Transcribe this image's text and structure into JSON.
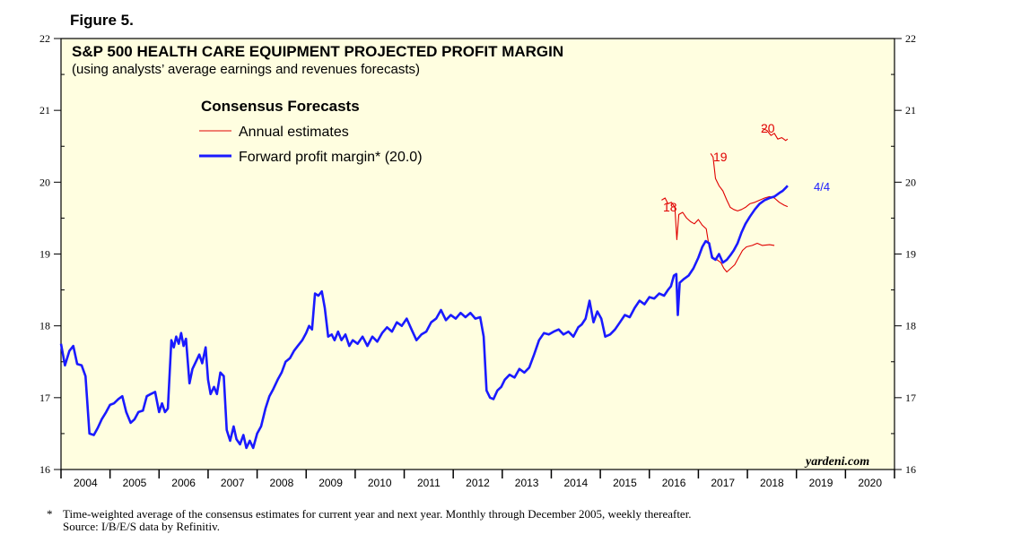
{
  "figure_label": "Figure 5.",
  "brand": "yardeni.com",
  "footnote": {
    "marker": "*",
    "line1": "Time-weighted average of the consensus estimates for current year and next year. Monthly through December 2005, weekly thereafter.",
    "line2": "Source: I/B/E/S data by Refinitiv."
  },
  "colors": {
    "background": "#fffee0",
    "forward": "#1a1aff",
    "annual": "#e00000"
  },
  "chart_data": {
    "type": "line",
    "title": "S&P 500 HEALTH CARE EQUIPMENT PROJECTED PROFIT MARGIN",
    "subtitle": "(using analysts’ average earnings and revenues forecasts)",
    "legend": {
      "title": "Consensus Forecasts",
      "entries": [
        "Annual estimates",
        "Forward profit margin* (20.0)"
      ],
      "placement": "top-left"
    },
    "ylim": [
      16,
      22
    ],
    "yticks": [
      "16",
      "17",
      "18",
      "19",
      "20",
      "21",
      "22"
    ],
    "xlim": [
      2004,
      2021
    ],
    "xticks": [
      "2004",
      "2005",
      "2006",
      "2007",
      "2008",
      "2009",
      "2010",
      "2011",
      "2012",
      "2013",
      "2014",
      "2015",
      "2016",
      "2017",
      "2018",
      "2019",
      "2020"
    ],
    "annotations": {
      "y18": "18",
      "y19": "19",
      "y20": "20",
      "last_date": "4/4"
    },
    "series": [
      {
        "name": "Forward profit margin",
        "color": "#1a1aff",
        "points": [
          [
            2004.0,
            17.75
          ],
          [
            2004.08,
            17.45
          ],
          [
            2004.17,
            17.65
          ],
          [
            2004.25,
            17.72
          ],
          [
            2004.33,
            17.47
          ],
          [
            2004.42,
            17.45
          ],
          [
            2004.5,
            17.3
          ],
          [
            2004.58,
            16.5
          ],
          [
            2004.67,
            16.48
          ],
          [
            2004.75,
            16.58
          ],
          [
            2004.83,
            16.7
          ],
          [
            2004.92,
            16.8
          ],
          [
            2005.0,
            16.9
          ],
          [
            2005.08,
            16.92
          ],
          [
            2005.17,
            16.98
          ],
          [
            2005.25,
            17.02
          ],
          [
            2005.33,
            16.8
          ],
          [
            2005.42,
            16.65
          ],
          [
            2005.5,
            16.7
          ],
          [
            2005.58,
            16.8
          ],
          [
            2005.67,
            16.82
          ],
          [
            2005.75,
            17.02
          ],
          [
            2005.83,
            17.05
          ],
          [
            2005.92,
            17.08
          ],
          [
            2006.0,
            16.8
          ],
          [
            2006.06,
            16.92
          ],
          [
            2006.12,
            16.8
          ],
          [
            2006.18,
            16.85
          ],
          [
            2006.25,
            17.8
          ],
          [
            2006.3,
            17.7
          ],
          [
            2006.35,
            17.85
          ],
          [
            2006.4,
            17.75
          ],
          [
            2006.45,
            17.9
          ],
          [
            2006.5,
            17.72
          ],
          [
            2006.55,
            17.82
          ],
          [
            2006.62,
            17.2
          ],
          [
            2006.68,
            17.4
          ],
          [
            2006.75,
            17.5
          ],
          [
            2006.82,
            17.6
          ],
          [
            2006.88,
            17.48
          ],
          [
            2006.95,
            17.7
          ],
          [
            2007.0,
            17.25
          ],
          [
            2007.05,
            17.05
          ],
          [
            2007.12,
            17.15
          ],
          [
            2007.18,
            17.05
          ],
          [
            2007.25,
            17.35
          ],
          [
            2007.32,
            17.3
          ],
          [
            2007.38,
            16.55
          ],
          [
            2007.45,
            16.4
          ],
          [
            2007.52,
            16.6
          ],
          [
            2007.58,
            16.42
          ],
          [
            2007.65,
            16.35
          ],
          [
            2007.72,
            16.48
          ],
          [
            2007.78,
            16.3
          ],
          [
            2007.85,
            16.4
          ],
          [
            2007.92,
            16.3
          ],
          [
            2008.0,
            16.5
          ],
          [
            2008.08,
            16.6
          ],
          [
            2008.17,
            16.85
          ],
          [
            2008.25,
            17.02
          ],
          [
            2008.33,
            17.12
          ],
          [
            2008.42,
            17.25
          ],
          [
            2008.5,
            17.35
          ],
          [
            2008.58,
            17.5
          ],
          [
            2008.67,
            17.55
          ],
          [
            2008.75,
            17.65
          ],
          [
            2008.83,
            17.72
          ],
          [
            2008.92,
            17.8
          ],
          [
            2009.0,
            17.9
          ],
          [
            2009.06,
            18.0
          ],
          [
            2009.12,
            17.95
          ],
          [
            2009.18,
            18.45
          ],
          [
            2009.25,
            18.42
          ],
          [
            2009.32,
            18.48
          ],
          [
            2009.38,
            18.25
          ],
          [
            2009.45,
            17.85
          ],
          [
            2009.52,
            17.88
          ],
          [
            2009.58,
            17.8
          ],
          [
            2009.65,
            17.92
          ],
          [
            2009.72,
            17.8
          ],
          [
            2009.8,
            17.88
          ],
          [
            2009.88,
            17.72
          ],
          [
            2009.95,
            17.8
          ],
          [
            2010.05,
            17.75
          ],
          [
            2010.15,
            17.85
          ],
          [
            2010.25,
            17.72
          ],
          [
            2010.35,
            17.85
          ],
          [
            2010.45,
            17.78
          ],
          [
            2010.55,
            17.9
          ],
          [
            2010.65,
            17.98
          ],
          [
            2010.75,
            17.92
          ],
          [
            2010.85,
            18.05
          ],
          [
            2010.95,
            18.0
          ],
          [
            2011.05,
            18.1
          ],
          [
            2011.15,
            17.95
          ],
          [
            2011.25,
            17.8
          ],
          [
            2011.35,
            17.88
          ],
          [
            2011.45,
            17.92
          ],
          [
            2011.55,
            18.05
          ],
          [
            2011.65,
            18.1
          ],
          [
            2011.75,
            18.22
          ],
          [
            2011.85,
            18.08
          ],
          [
            2011.95,
            18.15
          ],
          [
            2012.05,
            18.1
          ],
          [
            2012.15,
            18.18
          ],
          [
            2012.25,
            18.12
          ],
          [
            2012.35,
            18.18
          ],
          [
            2012.45,
            18.1
          ],
          [
            2012.55,
            18.12
          ],
          [
            2012.62,
            17.85
          ],
          [
            2012.68,
            17.1
          ],
          [
            2012.75,
            17.0
          ],
          [
            2012.82,
            16.98
          ],
          [
            2012.9,
            17.1
          ],
          [
            2012.98,
            17.15
          ],
          [
            2013.05,
            17.25
          ],
          [
            2013.15,
            17.32
          ],
          [
            2013.25,
            17.28
          ],
          [
            2013.35,
            17.4
          ],
          [
            2013.45,
            17.35
          ],
          [
            2013.55,
            17.42
          ],
          [
            2013.65,
            17.6
          ],
          [
            2013.75,
            17.8
          ],
          [
            2013.85,
            17.9
          ],
          [
            2013.95,
            17.88
          ],
          [
            2014.05,
            17.92
          ],
          [
            2014.15,
            17.95
          ],
          [
            2014.25,
            17.88
          ],
          [
            2014.35,
            17.92
          ],
          [
            2014.45,
            17.85
          ],
          [
            2014.55,
            17.98
          ],
          [
            2014.62,
            18.02
          ],
          [
            2014.7,
            18.1
          ],
          [
            2014.78,
            18.35
          ],
          [
            2014.86,
            18.05
          ],
          [
            2014.94,
            18.2
          ],
          [
            2015.02,
            18.1
          ],
          [
            2015.1,
            17.85
          ],
          [
            2015.2,
            17.88
          ],
          [
            2015.3,
            17.95
          ],
          [
            2015.4,
            18.05
          ],
          [
            2015.5,
            18.15
          ],
          [
            2015.6,
            18.12
          ],
          [
            2015.7,
            18.25
          ],
          [
            2015.8,
            18.35
          ],
          [
            2015.9,
            18.3
          ],
          [
            2016.0,
            18.4
          ],
          [
            2016.1,
            18.38
          ],
          [
            2016.2,
            18.45
          ],
          [
            2016.3,
            18.42
          ],
          [
            2016.38,
            18.5
          ],
          [
            2016.44,
            18.55
          ],
          [
            2016.5,
            18.7
          ],
          [
            2016.55,
            18.72
          ],
          [
            2016.58,
            18.15
          ],
          [
            2016.62,
            18.6
          ],
          [
            2016.7,
            18.65
          ],
          [
            2016.8,
            18.7
          ],
          [
            2016.9,
            18.8
          ],
          [
            2017.0,
            18.95
          ],
          [
            2017.08,
            19.1
          ],
          [
            2017.15,
            19.18
          ],
          [
            2017.22,
            19.15
          ],
          [
            2017.28,
            18.95
          ],
          [
            2017.35,
            18.92
          ],
          [
            2017.42,
            19.0
          ],
          [
            2017.5,
            18.88
          ],
          [
            2017.58,
            18.92
          ],
          [
            2017.65,
            18.98
          ],
          [
            2017.72,
            19.05
          ],
          [
            2017.8,
            19.15
          ],
          [
            2017.88,
            19.3
          ],
          [
            2017.96,
            19.42
          ],
          [
            2018.05,
            19.52
          ],
          [
            2018.15,
            19.62
          ],
          [
            2018.25,
            19.7
          ],
          [
            2018.35,
            19.75
          ],
          [
            2018.45,
            19.78
          ],
          [
            2018.55,
            19.8
          ],
          [
            2018.65,
            19.85
          ],
          [
            2018.72,
            19.88
          ],
          [
            2018.78,
            19.92
          ],
          [
            2018.82,
            19.95
          ]
        ]
      },
      {
        "name": "2018 annual estimate",
        "color": "#e00000",
        "points": [
          [
            2016.25,
            19.75
          ],
          [
            2016.32,
            19.78
          ],
          [
            2016.38,
            19.7
          ],
          [
            2016.45,
            19.72
          ],
          [
            2016.52,
            19.65
          ],
          [
            2016.56,
            19.2
          ],
          [
            2016.6,
            19.55
          ],
          [
            2016.68,
            19.58
          ],
          [
            2016.76,
            19.5
          ],
          [
            2016.84,
            19.45
          ],
          [
            2016.92,
            19.42
          ],
          [
            2017.0,
            19.48
          ],
          [
            2017.08,
            19.4
          ],
          [
            2017.16,
            19.35
          ],
          [
            2017.22,
            19.1
          ],
          [
            2017.3,
            18.95
          ],
          [
            2017.38,
            18.92
          ],
          [
            2017.46,
            18.88
          ],
          [
            2017.52,
            18.8
          ],
          [
            2017.58,
            18.75
          ],
          [
            2017.66,
            18.8
          ],
          [
            2017.74,
            18.85
          ],
          [
            2017.82,
            18.95
          ],
          [
            2017.9,
            19.05
          ],
          [
            2017.98,
            19.1
          ],
          [
            2018.1,
            19.12
          ],
          [
            2018.2,
            19.15
          ],
          [
            2018.3,
            19.12
          ],
          [
            2018.45,
            19.13
          ],
          [
            2018.55,
            19.12
          ]
        ]
      },
      {
        "name": "2019 annual estimate",
        "color": "#e00000",
        "points": [
          [
            2017.25,
            20.4
          ],
          [
            2017.3,
            20.35
          ],
          [
            2017.35,
            20.05
          ],
          [
            2017.42,
            19.95
          ],
          [
            2017.5,
            19.88
          ],
          [
            2017.58,
            19.75
          ],
          [
            2017.65,
            19.65
          ],
          [
            2017.72,
            19.62
          ],
          [
            2017.8,
            19.6
          ],
          [
            2017.88,
            19.62
          ],
          [
            2017.96,
            19.65
          ],
          [
            2018.05,
            19.7
          ],
          [
            2018.15,
            19.72
          ],
          [
            2018.25,
            19.75
          ],
          [
            2018.35,
            19.78
          ],
          [
            2018.45,
            19.8
          ],
          [
            2018.55,
            19.78
          ],
          [
            2018.65,
            19.72
          ],
          [
            2018.75,
            19.68
          ],
          [
            2018.82,
            19.66
          ]
        ]
      },
      {
        "name": "2020 annual estimate",
        "color": "#e00000",
        "points": [
          [
            2018.3,
            20.75
          ],
          [
            2018.4,
            20.72
          ],
          [
            2018.48,
            20.65
          ],
          [
            2018.55,
            20.68
          ],
          [
            2018.62,
            20.6
          ],
          [
            2018.7,
            20.62
          ],
          [
            2018.78,
            20.58
          ],
          [
            2018.82,
            20.6
          ]
        ]
      }
    ]
  }
}
